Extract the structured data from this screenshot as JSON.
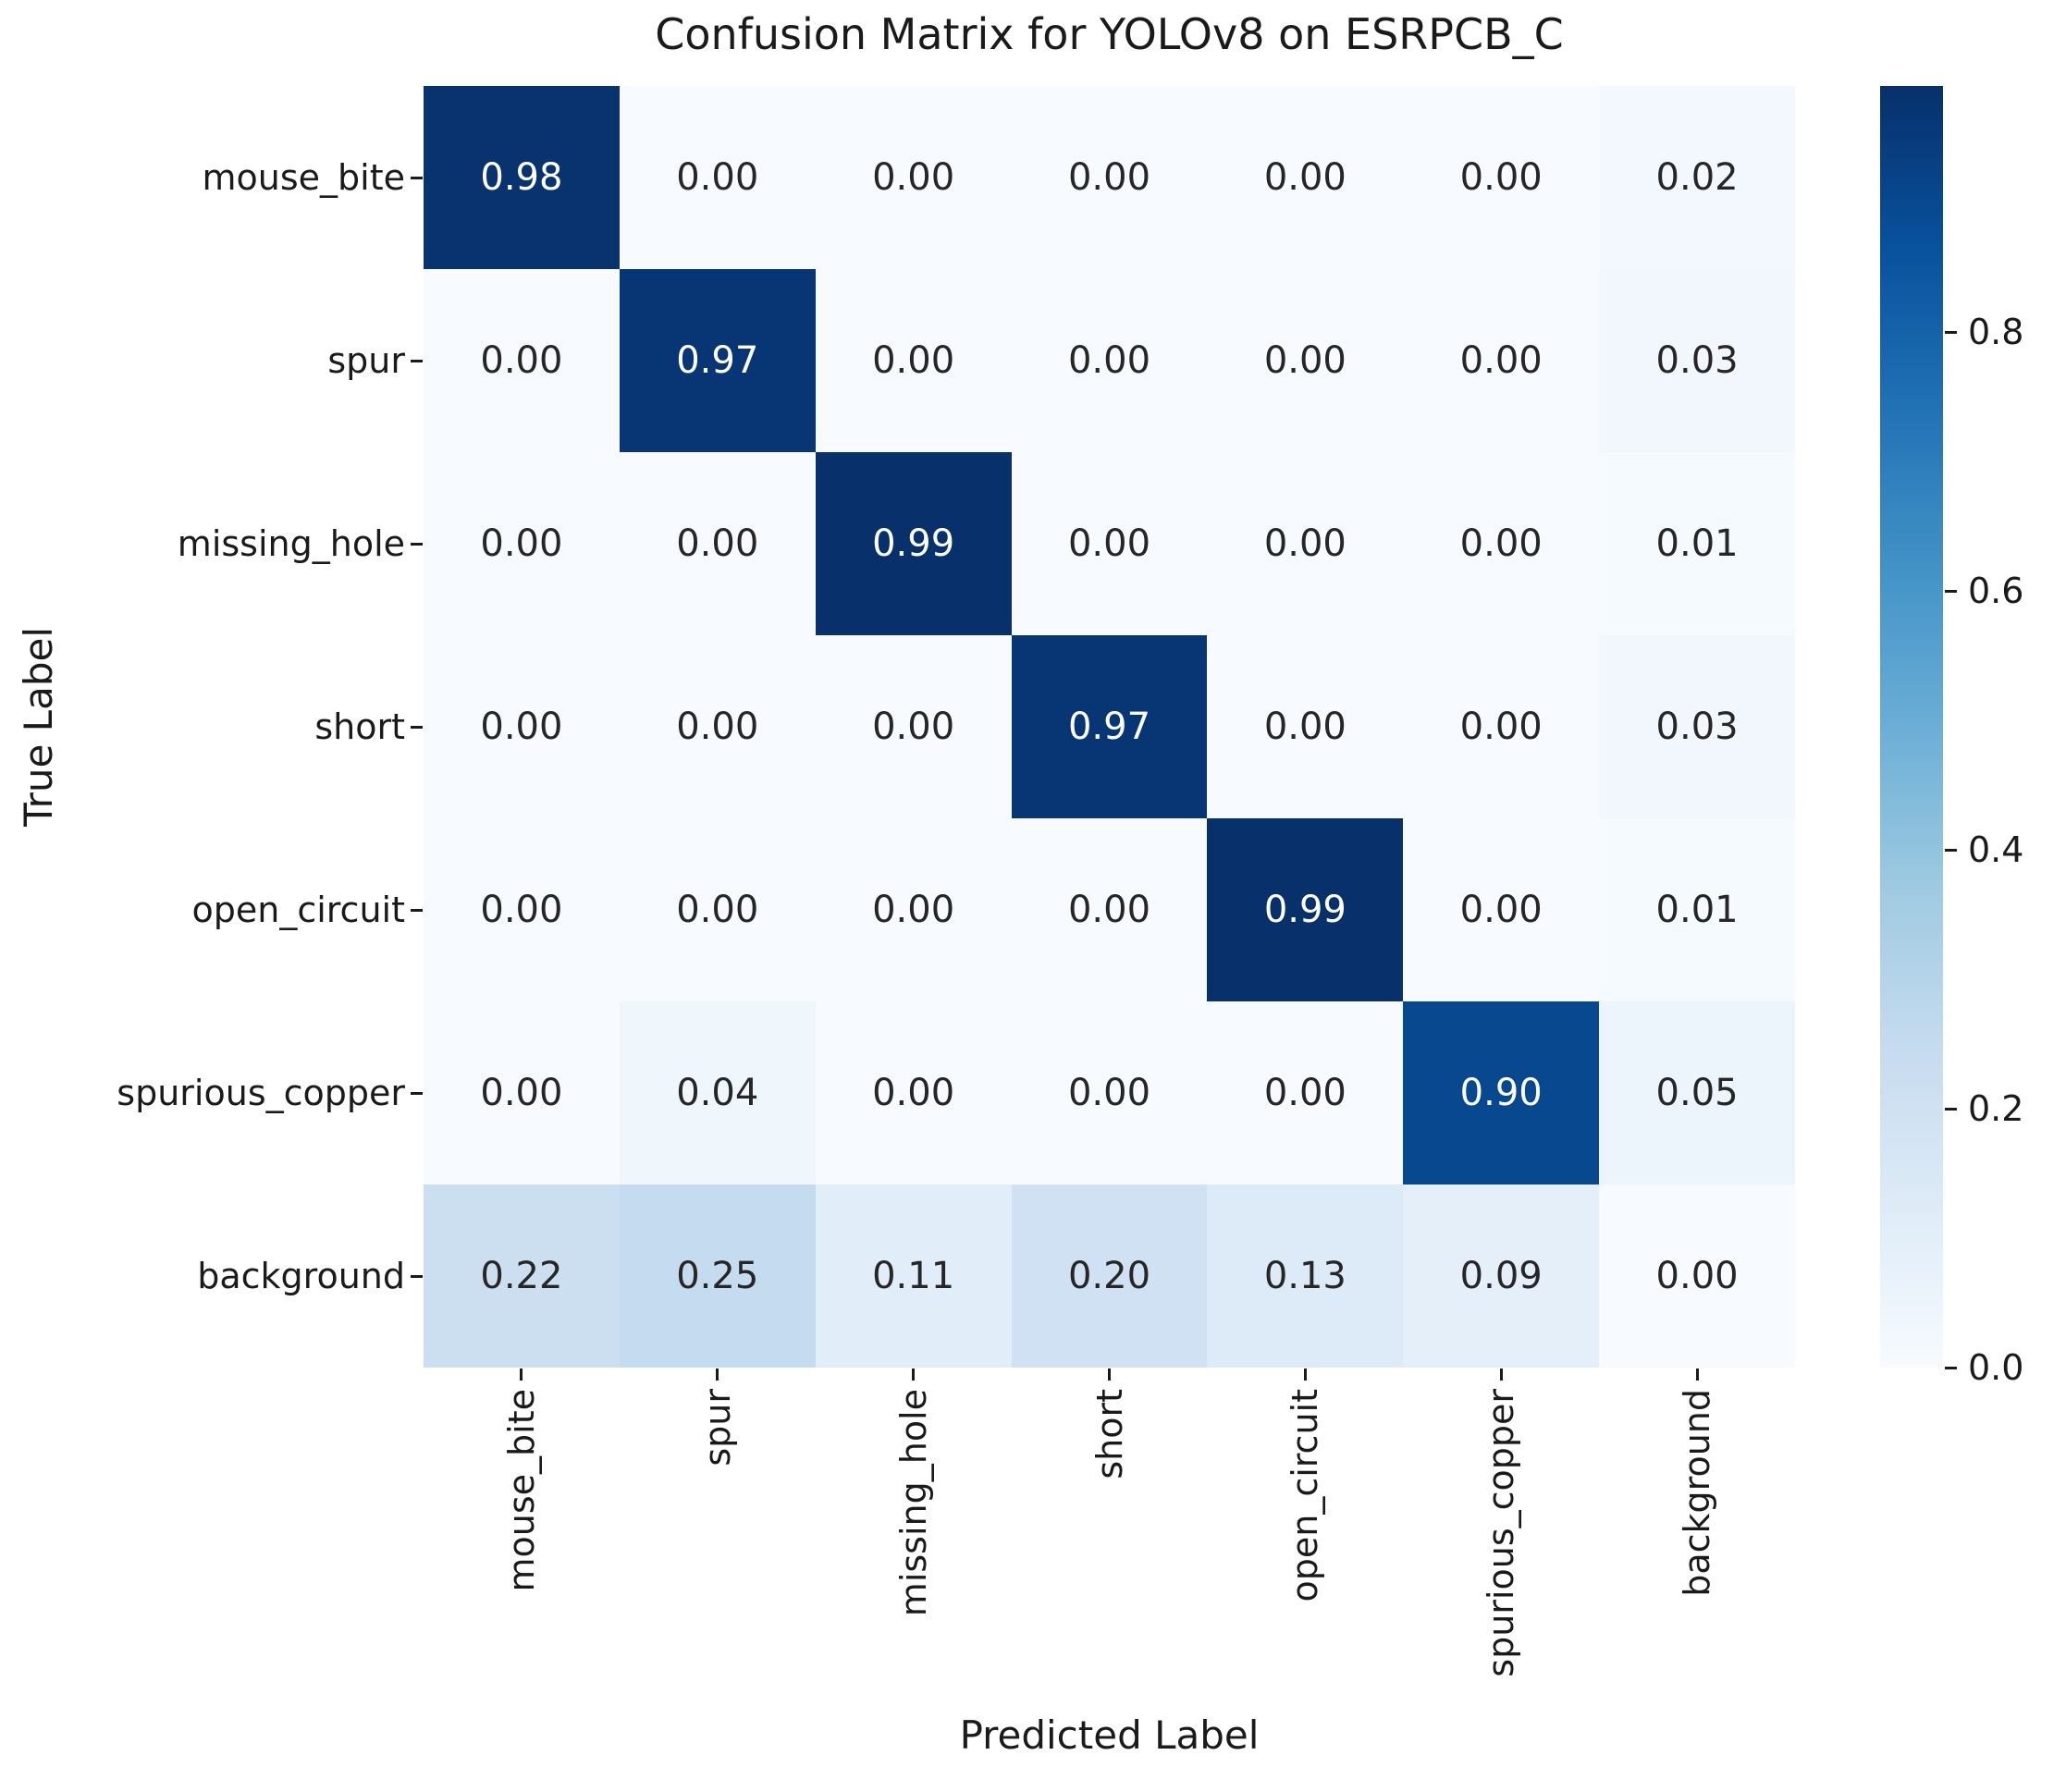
{
  "chart_data": {
    "type": "heatmap",
    "title": "Confusion Matrix for YOLOv8 on ESRPCB_C",
    "xlabel": "Predicted Label",
    "ylabel": "True Label",
    "x_categories": [
      "mouse_bite",
      "spur",
      "missing_hole",
      "short",
      "open_circuit",
      "spurious_copper",
      "background"
    ],
    "y_categories": [
      "mouse_bite",
      "spur",
      "missing_hole",
      "short",
      "open_circuit",
      "spurious_copper",
      "background"
    ],
    "matrix": [
      [
        0.98,
        0.0,
        0.0,
        0.0,
        0.0,
        0.0,
        0.02
      ],
      [
        0.0,
        0.97,
        0.0,
        0.0,
        0.0,
        0.0,
        0.03
      ],
      [
        0.0,
        0.0,
        0.99,
        0.0,
        0.0,
        0.0,
        0.01
      ],
      [
        0.0,
        0.0,
        0.0,
        0.97,
        0.0,
        0.0,
        0.03
      ],
      [
        0.0,
        0.0,
        0.0,
        0.0,
        0.99,
        0.0,
        0.01
      ],
      [
        0.0,
        0.04,
        0.0,
        0.0,
        0.0,
        0.9,
        0.05
      ],
      [
        0.22,
        0.25,
        0.11,
        0.2,
        0.13,
        0.09,
        0.0
      ]
    ],
    "vmin": 0.0,
    "vmax": 0.99,
    "value_decimals": 2,
    "grid": false,
    "colormap": {
      "name": "Blues",
      "stops": [
        "#f7fbff",
        "#deebf7",
        "#c6dbef",
        "#9ecae1",
        "#6baed6",
        "#4292c6",
        "#2171b5",
        "#08519c",
        "#08306b"
      ]
    },
    "annotation_text_colors": {
      "light_cells": "#262626",
      "dark_cells": "#ffffff"
    },
    "colorbar": {
      "position": "right",
      "ticks": [
        0.0,
        0.2,
        0.4,
        0.6,
        0.8
      ],
      "tick_decimals": 1
    }
  }
}
